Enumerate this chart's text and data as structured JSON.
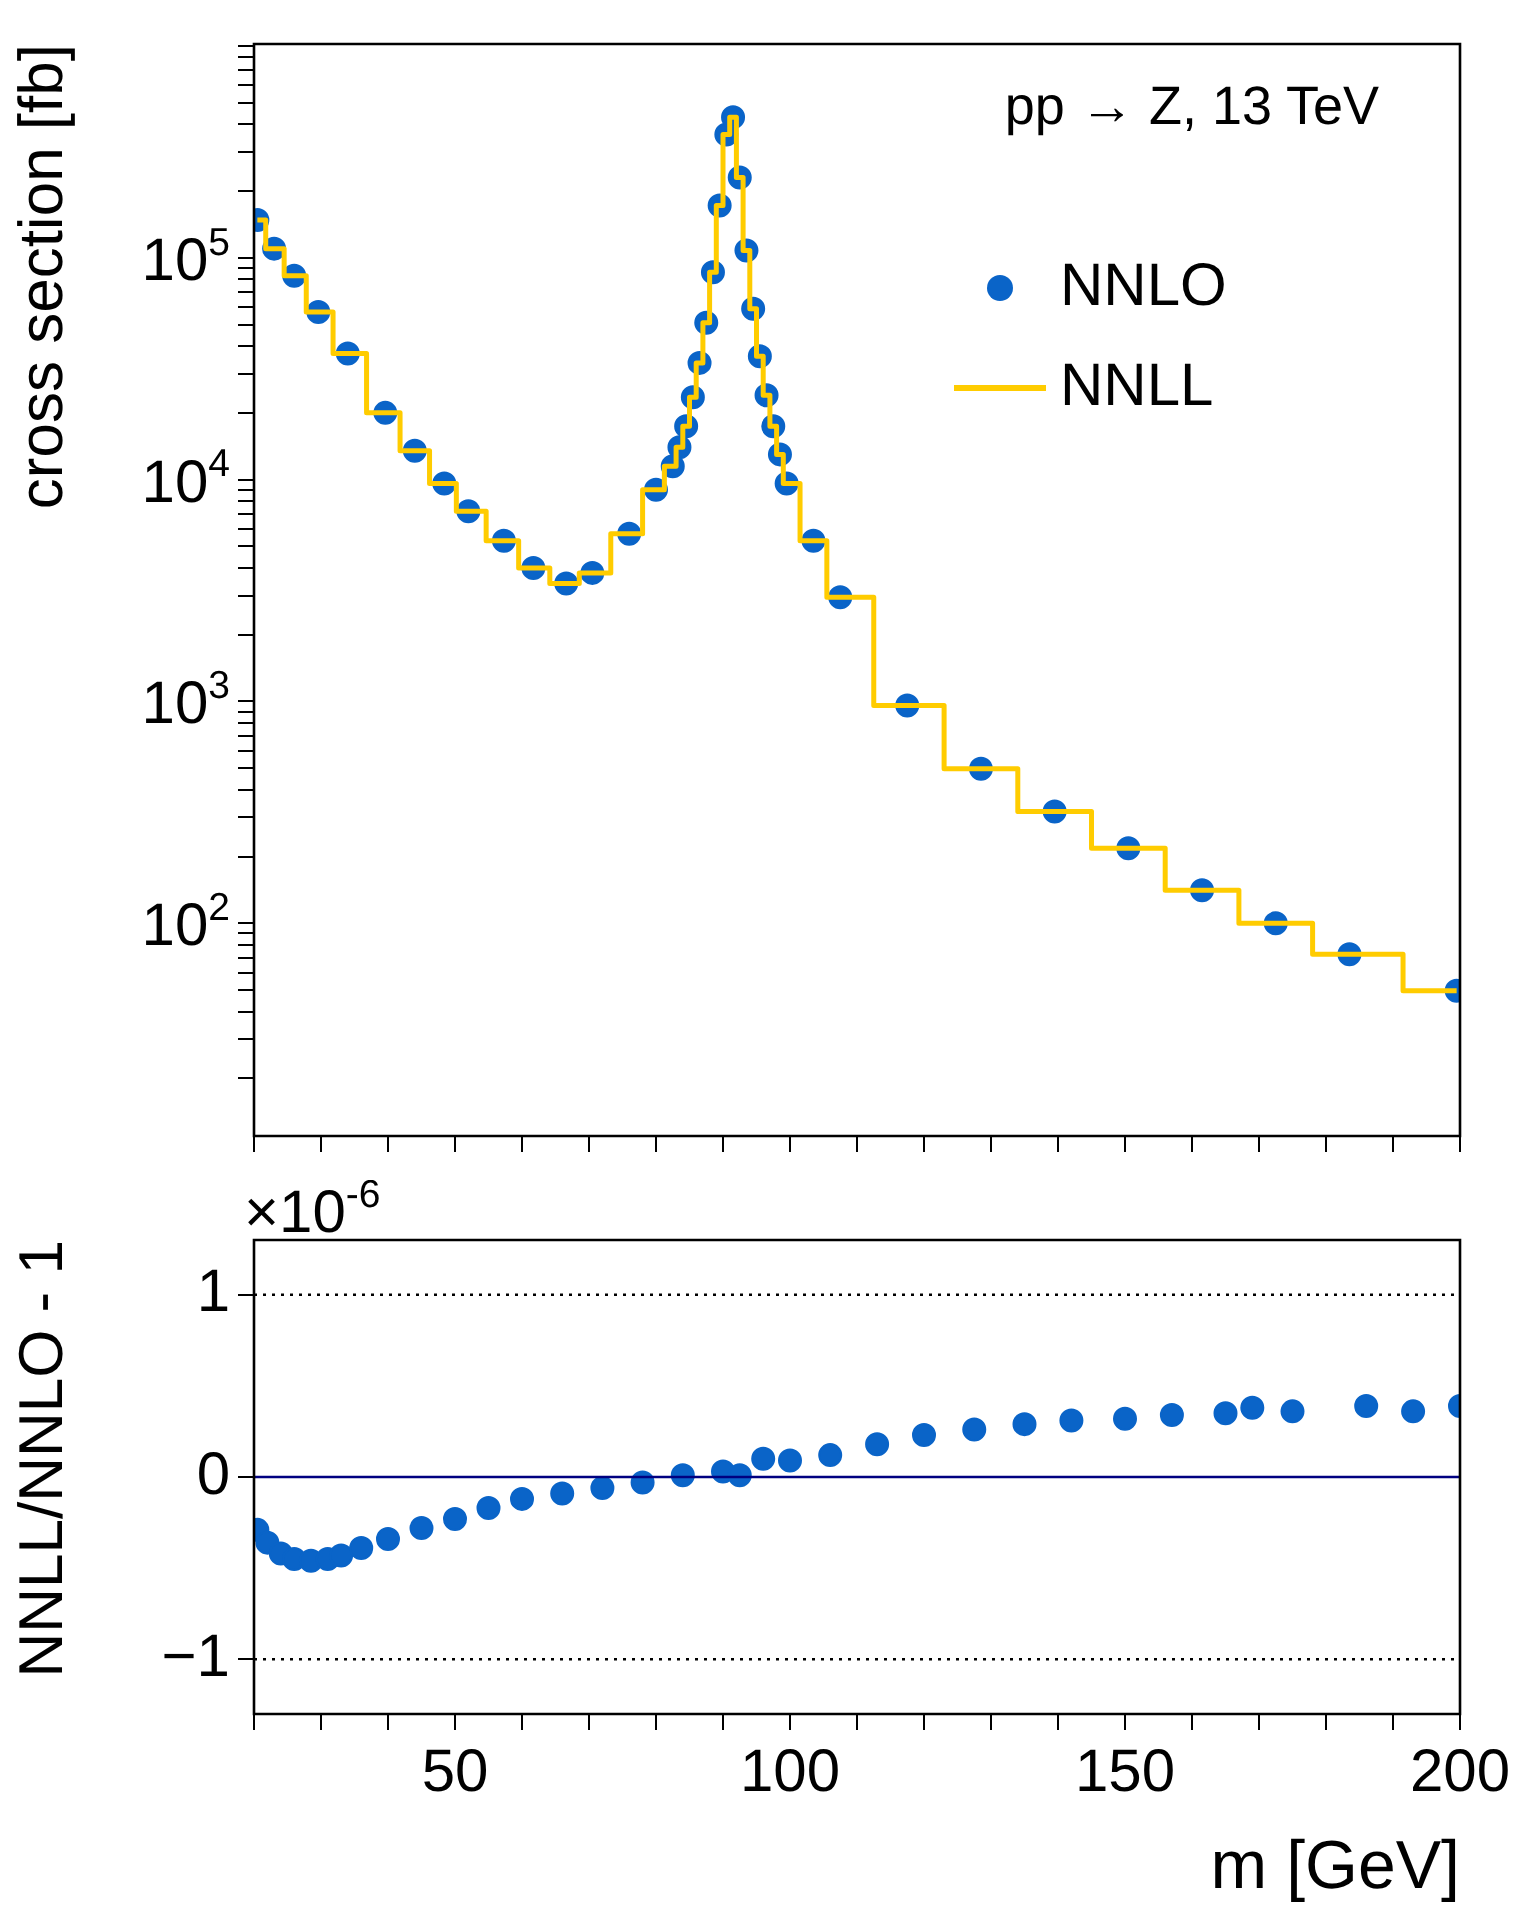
{
  "chart_data": [
    {
      "type": "scatter",
      "ylabel": "cross section [fb]",
      "log": "y",
      "tick_labels": "y",
      "legend": "top right",
      "annotations": [
        "pp → Z, 13 TeV"
      ],
      "xlim": [
        20,
        200
      ],
      "xticks": [
        {
          "value": 20,
          "label": null
        },
        {
          "value": 30,
          "label": null
        },
        {
          "value": 40,
          "label": null
        },
        {
          "value": 50,
          "label": null
        },
        {
          "value": 60,
          "label": null
        },
        {
          "value": 70,
          "label": null
        },
        {
          "value": 80,
          "label": null
        },
        {
          "value": 90,
          "label": null
        },
        {
          "value": 100,
          "label": null
        },
        {
          "value": 110,
          "label": null
        },
        {
          "value": 120,
          "label": null
        },
        {
          "value": 130,
          "label": null
        },
        {
          "value": 140,
          "label": null
        },
        {
          "value": 150,
          "label": null
        },
        {
          "value": 160,
          "label": null
        },
        {
          "value": 170,
          "label": null
        },
        {
          "value": 180,
          "label": null
        },
        {
          "value": 190,
          "label": null
        },
        {
          "value": 200,
          "label": null
        }
      ],
      "ylim": [
        11,
        920000
      ],
      "yticks": [
        {
          "value": 20,
          "label": null
        },
        {
          "value": 30,
          "label": null
        },
        {
          "value": 40,
          "label": null
        },
        {
          "value": 50,
          "label": null
        },
        {
          "value": 60,
          "label": null
        },
        {
          "value": 70,
          "label": null
        },
        {
          "value": 80,
          "label": null
        },
        {
          "value": 90,
          "label": null
        },
        {
          "value": 100,
          "label": "10$^{2}$"
        },
        {
          "value": 200,
          "label": null
        },
        {
          "value": 300,
          "label": null
        },
        {
          "value": 400,
          "label": null
        },
        {
          "value": 500,
          "label": null
        },
        {
          "value": 600,
          "label": null
        },
        {
          "value": 700,
          "label": null
        },
        {
          "value": 800,
          "label": null
        },
        {
          "value": 900,
          "label": null
        },
        {
          "value": 1000,
          "label": "10$^{3}$"
        },
        {
          "value": 2000,
          "label": null
        },
        {
          "value": 3000,
          "label": null
        },
        {
          "value": 4000,
          "label": null
        },
        {
          "value": 5000,
          "label": null
        },
        {
          "value": 6000,
          "label": null
        },
        {
          "value": 7000,
          "label": null
        },
        {
          "value": 8000,
          "label": null
        },
        {
          "value": 9000,
          "label": null
        },
        {
          "value": 10000,
          "label": "10$^{4}$"
        },
        {
          "value": 20000,
          "label": null
        },
        {
          "value": 30000,
          "label": null
        },
        {
          "value": 40000,
          "label": null
        },
        {
          "value": 50000,
          "label": null
        },
        {
          "value": 60000,
          "label": null
        },
        {
          "value": 70000,
          "label": null
        },
        {
          "value": 80000,
          "label": null
        },
        {
          "value": 90000,
          "label": null
        },
        {
          "value": 100000,
          "label": "10$^{5}$"
        },
        {
          "value": 200000,
          "label": null
        },
        {
          "value": 300000,
          "label": null
        },
        {
          "value": 400000,
          "label": null
        },
        {
          "value": 500000,
          "label": null
        },
        {
          "value": 600000,
          "label": null
        },
        {
          "value": 700000,
          "label": null
        },
        {
          "value": 800000,
          "label": null
        },
        {
          "value": 900000,
          "label": null
        }
      ],
      "x": [
        20.5,
        23,
        26,
        29.6,
        34,
        39.6,
        44,
        48.4,
        52,
        57.3,
        61.7,
        66.6,
        70.5,
        76,
        80,
        82.5,
        83.5,
        84.5,
        85.5,
        86.5,
        87.5,
        88.5,
        89.5,
        90.5,
        91.5,
        92.5,
        93.5,
        94.5,
        95.5,
        96.5,
        97.5,
        98.5,
        99.5,
        103.5,
        107.5,
        117.5,
        128.5,
        139.5,
        150.5,
        161.5,
        172.5,
        183.5,
        199.5
      ],
      "series": [
        {
          "name": "NNLO",
          "type": "scatter",
          "marker": "circle",
          "color": "#0a64c8",
          "values": [
            148000,
            110000,
            83000,
            57000,
            37000,
            20000,
            13500,
            9600,
            7200,
            5300,
            4000,
            3400,
            3800,
            5700,
            9000,
            11500,
            14000,
            17400,
            23500,
            33600,
            51000,
            86000,
            172000,
            360000,
            430000,
            230000,
            108000,
            59000,
            36000,
            24000,
            17400,
            13000,
            9600,
            5300,
            2950,
            960,
            497,
            319,
            218,
            141,
            100,
            72.6,
            49.7
          ]
        },
        {
          "name": "NNLL",
          "type": "step",
          "marker": "none",
          "color": "#ffcc00",
          "values": [
            148000,
            110000,
            83000,
            57000,
            37000,
            20000,
            13500,
            9600,
            7200,
            5300,
            4000,
            3400,
            3800,
            5700,
            9000,
            11500,
            14000,
            17400,
            23500,
            33600,
            51000,
            86000,
            172000,
            360000,
            430000,
            230000,
            108000,
            59000,
            36000,
            24000,
            17400,
            13000,
            9600,
            5300,
            2950,
            960,
            497,
            319,
            218,
            141,
            100,
            72.6,
            49.7
          ]
        }
      ]
    },
    {
      "type": "scatter",
      "xlabel": "m [GeV]",
      "ylabel": "NNLL/NNLO - 1",
      "marker": "circle",
      "annotations": [
        "×10$^{-6}$"
      ],
      "xlim": [
        20,
        200
      ],
      "xticks": [
        {
          "value": 20,
          "label": null
        },
        {
          "value": 30,
          "label": null
        },
        {
          "value": 40,
          "label": null
        },
        50,
        {
          "value": 60,
          "label": null
        },
        {
          "value": 70,
          "label": null
        },
        {
          "value": 80,
          "label": null
        },
        {
          "value": 90,
          "label": null
        },
        100,
        {
          "value": 110,
          "label": null
        },
        {
          "value": 120,
          "label": null
        },
        {
          "value": 130,
          "label": null
        },
        {
          "value": 140,
          "label": null
        },
        150,
        {
          "value": 160,
          "label": null
        },
        {
          "value": 170,
          "label": null
        },
        {
          "value": 180,
          "label": null
        },
        {
          "value": 190,
          "label": null
        },
        200
      ],
      "ylim": [
        -1.3,
        1.3
      ],
      "yticks": [
        {
          "value": -1,
          "label": "−1"
        },
        0,
        1
      ],
      "ref_lines": [
        {
          "axis": "y",
          "value": 1,
          "color": "#000000",
          "line_style": "dotted"
        },
        {
          "axis": "y",
          "value": -1,
          "color": "#000000",
          "line_style": "dotted"
        },
        {
          "axis": "y",
          "value": 0,
          "color": "#000080",
          "line_style": "solid"
        }
      ],
      "x": [
        20.5,
        22,
        24,
        26,
        28.5,
        31,
        33,
        36,
        40,
        45,
        50,
        55,
        60,
        66,
        72,
        78,
        84,
        90,
        92.5,
        96,
        100,
        106,
        113,
        120,
        127.5,
        135,
        142,
        150,
        157,
        165,
        169,
        175,
        186,
        193,
        200
      ],
      "series": [
        {
          "color": "#0a64c8",
          "values": [
            -0.29,
            -0.36,
            -0.42,
            -0.45,
            -0.46,
            -0.45,
            -0.43,
            -0.39,
            -0.34,
            -0.28,
            -0.23,
            -0.17,
            -0.12,
            -0.09,
            -0.06,
            -0.03,
            0.01,
            0.03,
            0.01,
            0.1,
            0.09,
            0.12,
            0.18,
            0.23,
            0.26,
            0.29,
            0.31,
            0.32,
            0.34,
            0.35,
            0.38,
            0.36,
            0.39,
            0.36,
            0.39
          ]
        }
      ]
    }
  ]
}
